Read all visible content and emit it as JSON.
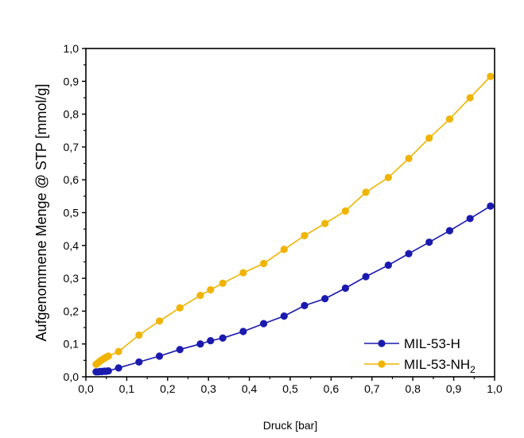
{
  "chart_data": {
    "type": "line",
    "title": "",
    "xlabel": "Druck [bar]",
    "ylabel": "Aufgenommene Menge @ STP [mmol/g]",
    "xlim": [
      0.0,
      1.0
    ],
    "ylim": [
      0.0,
      1.0
    ],
    "xticks": [
      "0,0",
      "0,1",
      "0,2",
      "0,3",
      "0,4",
      "0,5",
      "0,6",
      "0,7",
      "0,8",
      "0,9",
      "1,0"
    ],
    "yticks": [
      "0,0",
      "0,1",
      "0,2",
      "0,3",
      "0,4",
      "0,5",
      "0,6",
      "0,7",
      "0,8",
      "0,9",
      "1,0"
    ],
    "grid": false,
    "legend_position": "bottom-right",
    "series": [
      {
        "name": "MIL-53-H",
        "color": "#1a1aaf",
        "marker": "circle",
        "x": [
          0.025,
          0.03,
          0.035,
          0.04,
          0.045,
          0.05,
          0.055,
          0.08,
          0.13,
          0.18,
          0.23,
          0.28,
          0.305,
          0.335,
          0.385,
          0.435,
          0.485,
          0.535,
          0.585,
          0.635,
          0.685,
          0.74,
          0.79,
          0.84,
          0.89,
          0.94,
          0.99
        ],
        "y": [
          0.015,
          0.015,
          0.016,
          0.016,
          0.017,
          0.017,
          0.018,
          0.027,
          0.045,
          0.063,
          0.083,
          0.1,
          0.11,
          0.118,
          0.138,
          0.162,
          0.185,
          0.217,
          0.238,
          0.27,
          0.305,
          0.34,
          0.375,
          0.41,
          0.445,
          0.482,
          0.52
        ]
      },
      {
        "name": "MIL-53-NH2",
        "legend_label": "MIL-53-NH",
        "legend_subscript": "2",
        "color": "#f0b400",
        "marker": "circle",
        "x": [
          0.025,
          0.03,
          0.035,
          0.04,
          0.045,
          0.05,
          0.055,
          0.08,
          0.13,
          0.18,
          0.23,
          0.28,
          0.305,
          0.335,
          0.385,
          0.435,
          0.485,
          0.535,
          0.585,
          0.635,
          0.685,
          0.74,
          0.79,
          0.84,
          0.89,
          0.94,
          0.99
        ],
        "y": [
          0.038,
          0.043,
          0.048,
          0.052,
          0.056,
          0.06,
          0.063,
          0.077,
          0.127,
          0.17,
          0.21,
          0.248,
          0.265,
          0.285,
          0.317,
          0.345,
          0.388,
          0.43,
          0.467,
          0.505,
          0.562,
          0.607,
          0.665,
          0.727,
          0.785,
          0.85,
          0.915
        ]
      }
    ]
  }
}
